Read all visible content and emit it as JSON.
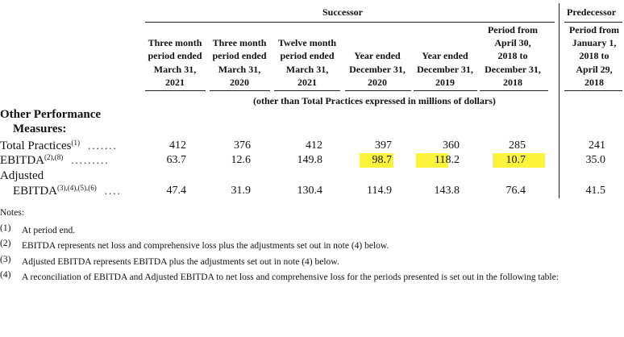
{
  "header": {
    "group_successor": "Successor",
    "group_predecessor": "Predecessor",
    "columns": [
      [
        "Three month",
        "period ended",
        "March 31,",
        "2021"
      ],
      [
        "Three month",
        "period ended",
        "March 31,",
        "2020"
      ],
      [
        "Twelve month",
        "period ended",
        "March 31,",
        "2021"
      ],
      [
        "Year ended",
        "December 31,",
        "2020"
      ],
      [
        "Year ended",
        "December 31,",
        "2019"
      ],
      [
        "Period from",
        "April 30,",
        "2018 to",
        "December 31,",
        "2018"
      ],
      [
        "Period from",
        "January 1,",
        "2018 to",
        "April 29,",
        "2018"
      ]
    ],
    "unit_note": "(other than Total Practices expressed in millions of dollars)"
  },
  "table": {
    "section": [
      "Other Performance",
      "Measures:"
    ],
    "rows": [
      {
        "label": [
          "Total Practices"
        ],
        "ref": "(1)",
        "leader": ".......",
        "values": [
          "412",
          "376",
          "412",
          "397",
          "360",
          "285",
          "241"
        ]
      },
      {
        "label": [
          "EBITDA"
        ],
        "ref": "(2),(8)",
        "leader": ".........",
        "values": [
          "63.7",
          "12.6",
          "149.8",
          "98.7",
          "118.2",
          "10.7",
          "35.0"
        ]
      },
      {
        "label": [
          "Adjusted",
          "EBITDA"
        ],
        "ref": "(3),(4),(5),(6)",
        "leader": "....",
        "values": [
          "47.4",
          "31.9",
          "130.4",
          "114.9",
          "143.8",
          "76.4",
          "41.5"
        ]
      }
    ]
  },
  "notes": {
    "title": "Notes:",
    "items": [
      {
        "num": "(1)",
        "text": "At period end."
      },
      {
        "num": "(2)",
        "text": "EBITDA represents net loss and comprehensive loss plus the adjustments set out in note (4) below."
      },
      {
        "num": "(3)",
        "text": "Adjusted EBITDA represents EBITDA plus the adjustments set out in note (4) below."
      },
      {
        "num": "(4)",
        "text": "A reconciliation of EBITDA and Adjusted EBITDA to net loss and comprehensive loss for the periods presented is set out in the following table:"
      }
    ]
  }
}
